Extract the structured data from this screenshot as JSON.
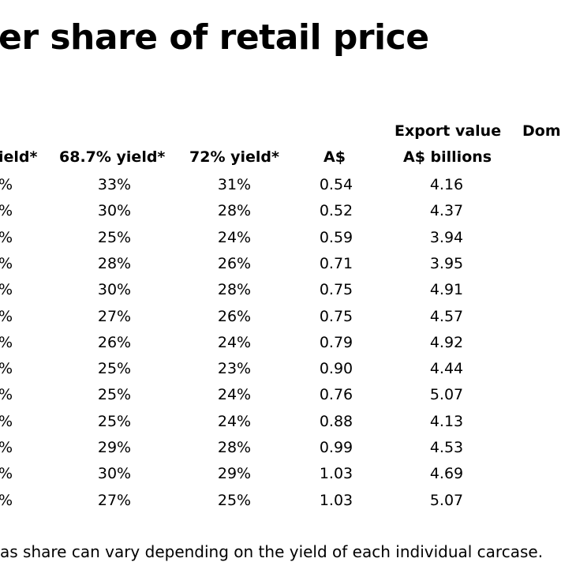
{
  "title": "er share of retail price",
  "headers": {
    "col1": "ield*",
    "col2": "68.7% yield*",
    "col3": "72% yield*",
    "col4": "A$",
    "col5_line1": "Export value",
    "col5_line2": "A$ billions",
    "col6": "Dom"
  },
  "rows": [
    [
      "%",
      "33%",
      "31%",
      "0.54",
      "4.16"
    ],
    [
      "%",
      "30%",
      "28%",
      "0.52",
      "4.37"
    ],
    [
      "%",
      "25%",
      "24%",
      "0.59",
      "3.94"
    ],
    [
      "%",
      "28%",
      "26%",
      "0.71",
      "3.95"
    ],
    [
      "%",
      "30%",
      "28%",
      "0.75",
      "4.91"
    ],
    [
      "%",
      "27%",
      "26%",
      "0.75",
      "4.57"
    ],
    [
      "%",
      "26%",
      "24%",
      "0.79",
      "4.92"
    ],
    [
      "%",
      "25%",
      "23%",
      "0.90",
      "4.44"
    ],
    [
      "%",
      "25%",
      "24%",
      "0.76",
      "5.07"
    ],
    [
      "%",
      "25%",
      "24%",
      "0.88",
      "4.13"
    ],
    [
      "%",
      "29%",
      "28%",
      "0.99",
      "4.53"
    ],
    [
      "%",
      "30%",
      "29%",
      "1.03",
      "4.69"
    ],
    [
      "%",
      "27%",
      "25%",
      "1.03",
      "5.07"
    ]
  ],
  "footnote": "as share can vary depending on the yield of each individual carcase."
}
